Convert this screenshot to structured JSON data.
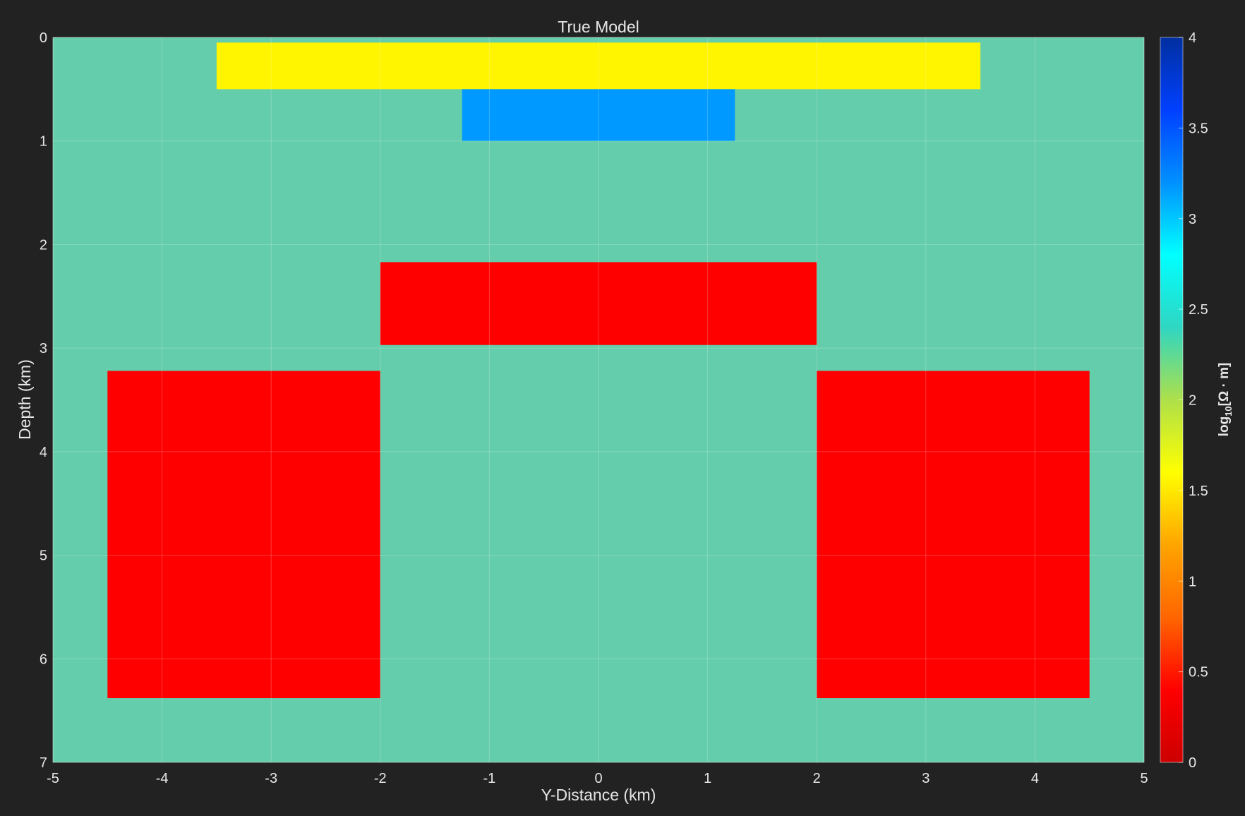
{
  "chart_data": {
    "type": "heatmap",
    "title": "True Model",
    "xlabel": "Y-Distance (km)",
    "ylabel": "Depth (km)",
    "xlim": [
      -5,
      5
    ],
    "ylim": [
      7,
      0
    ],
    "y_axis_reversed": true,
    "x_ticks": [
      "-5",
      "-4",
      "-3",
      "-2",
      "-1",
      "0",
      "1",
      "2",
      "3",
      "4",
      "5"
    ],
    "y_ticks": [
      "0",
      "1",
      "2",
      "3",
      "4",
      "5",
      "6",
      "7"
    ],
    "grid": true,
    "background_value": 2.0,
    "background_color": "#64cdab",
    "blocks": [
      {
        "name": "shallow-layer",
        "y_range": [
          -3.5,
          3.5
        ],
        "depth_range": [
          0.05,
          0.5
        ],
        "value": 1.5,
        "color": "#fff500"
      },
      {
        "name": "shallow-resistor",
        "y_range": [
          -1.25,
          1.25
        ],
        "depth_range": [
          0.5,
          1.0
        ],
        "value": 3.0,
        "color": "#0099ff"
      },
      {
        "name": "middle-conductor",
        "y_range": [
          -2.0,
          2.0
        ],
        "depth_range": [
          2.17,
          2.97
        ],
        "value": 0.5,
        "color": "#ff0000"
      },
      {
        "name": "left-conductor",
        "y_range": [
          -4.5,
          -2.0
        ],
        "depth_range": [
          3.22,
          6.38
        ],
        "value": 0.5,
        "color": "#ff0000"
      },
      {
        "name": "right-conductor",
        "y_range": [
          2.0,
          4.5
        ],
        "depth_range": [
          3.22,
          6.38
        ],
        "value": 0.5,
        "color": "#ff0000"
      }
    ],
    "colorbar": {
      "label_main": "log",
      "label_sub": "10",
      "label_rest": "[Ω · m]",
      "range": [
        0,
        4
      ],
      "ticks": [
        "0",
        "0.5",
        "1",
        "1.5",
        "2",
        "2.5",
        "3",
        "3.5",
        "4"
      ],
      "colormap": "jet-reversed",
      "stops": [
        "#cc0000",
        "#ff0000",
        "#ff6600",
        "#ffa500",
        "#ffff00",
        "#aee04a",
        "#2fd6c2",
        "#00ffff",
        "#0090ff",
        "#0040ff",
        "#002fa0"
      ]
    }
  },
  "colors": {
    "background": "#222222",
    "grid": "#ffffff",
    "text": "#e6e6e6"
  }
}
